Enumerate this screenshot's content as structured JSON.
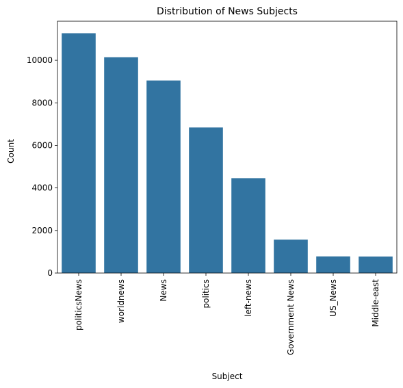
{
  "chart_data": {
    "type": "bar",
    "title": "Distribution of News Subjects",
    "xlabel": "Subject",
    "ylabel": "Count",
    "categories": [
      "politicsNews",
      "worldnews",
      "News",
      "politics",
      "left-news",
      "Government News",
      "US_News",
      "Middle-east"
    ],
    "values": [
      11272,
      10145,
      9050,
      6841,
      4459,
      1570,
      783,
      778
    ],
    "ylim": [
      0,
      11836
    ],
    "yticks": [
      0,
      2000,
      4000,
      6000,
      8000,
      10000
    ],
    "ytick_labels": [
      "0",
      "2000",
      "4000",
      "6000",
      "8000",
      "10000"
    ],
    "bar_color": "#3274a1",
    "grid": false,
    "legend": "none"
  }
}
